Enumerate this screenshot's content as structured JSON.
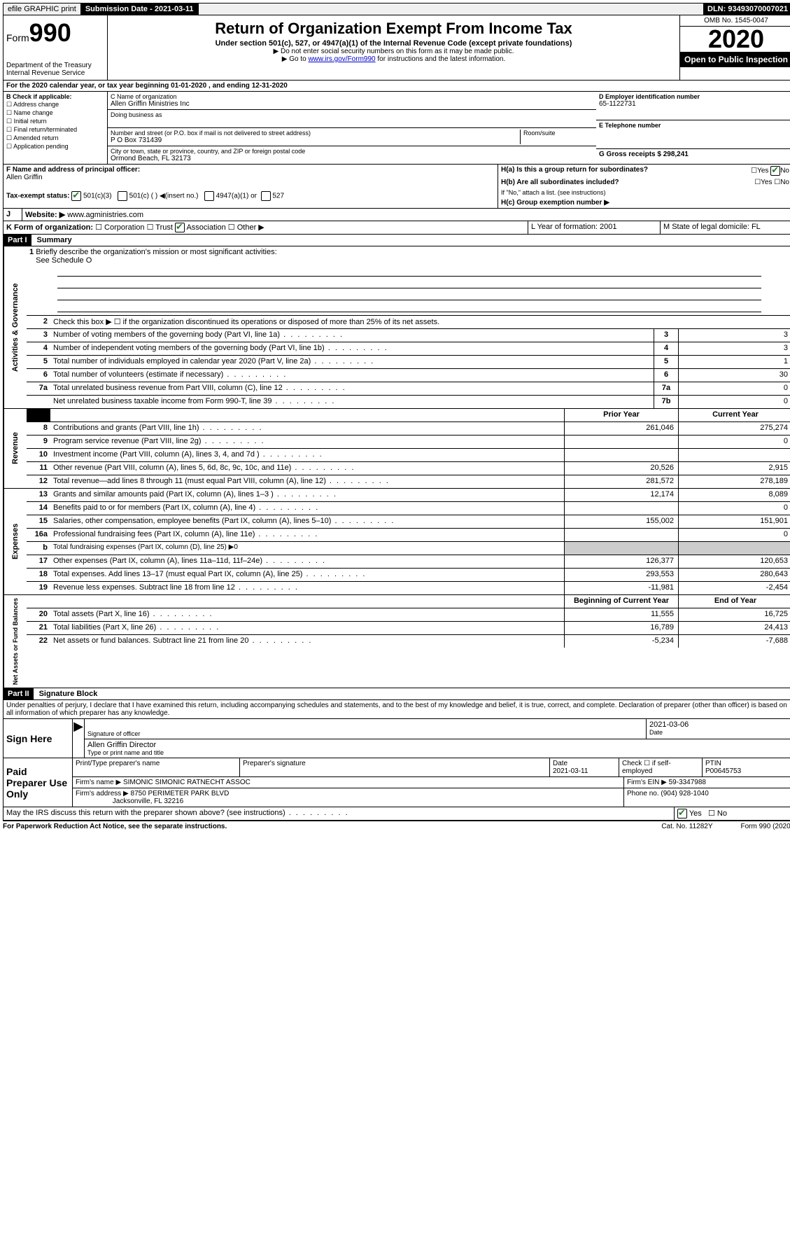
{
  "topbar": {
    "efile": "efile GRAPHIC print",
    "submission_label": "Submission Date - 2021-03-11",
    "dln_label": "DLN: 93493070007021"
  },
  "header": {
    "form_label": "Form",
    "form_number": "990",
    "dept": "Department of the Treasury",
    "irs": "Internal Revenue Service",
    "title": "Return of Organization Exempt From Income Tax",
    "subtitle": "Under section 501(c), 527, or 4947(a)(1) of the Internal Revenue Code (except private foundations)",
    "note1": "▶ Do not enter social security numbers on this form as it may be made public.",
    "note2_pre": "▶ Go to ",
    "note2_link": "www.irs.gov/Form990",
    "note2_post": " for instructions and the latest information.",
    "omb": "OMB No. 1545-0047",
    "year": "2020",
    "open_public": "Open to Public Inspection"
  },
  "lineA": "For the 2020 calendar year, or tax year beginning 01-01-2020    , and ending 12-31-2020",
  "sectionB": {
    "header": "B Check if applicable:",
    "opts": [
      "Address change",
      "Name change",
      "Initial return",
      "Final return/terminated",
      "Amended return",
      "Application pending"
    ]
  },
  "sectionC": {
    "org_label": "C Name of organization",
    "org_name": "Allen Griffin Ministries Inc",
    "dba_label": "Doing business as",
    "addr_label": "Number and street (or P.O. box if mail is not delivered to street address)",
    "addr": "P O Box 731439",
    "room_label": "Room/suite",
    "city_label": "City or town, state or province, country, and ZIP or foreign postal code",
    "city": "Ormond Beach, FL  32173"
  },
  "sectionD": {
    "label": "D Employer identification number",
    "value": "65-1122731"
  },
  "sectionE": {
    "label": "E Telephone number",
    "value": ""
  },
  "sectionG": {
    "label": "G Gross receipts $ 298,241"
  },
  "sectionF": {
    "label": "F  Name and address of principal officer:",
    "name": "Allen Griffin"
  },
  "sectionH": {
    "ha": "H(a)  Is this a group return for subordinates?",
    "ha_yes": "Yes",
    "ha_no": "No",
    "hb": "H(b)  Are all subordinates included?",
    "hb_note": "If \"No,\" attach a list. (see instructions)",
    "hc": "H(c)  Group exemption number ▶"
  },
  "sectionI": {
    "label": "Tax-exempt status:",
    "opt1": "501(c)(3)",
    "opt2": "501(c) (   ) ◀(insert no.)",
    "opt3": "4947(a)(1) or",
    "opt4": "527"
  },
  "sectionJ": {
    "label": "Website: ▶",
    "value": "www.agministries.com"
  },
  "sectionK": {
    "label": "K Form of organization:",
    "opts": [
      "Corporation",
      "Trust",
      "Association",
      "Other ▶"
    ]
  },
  "sectionL": {
    "label": "L Year of formation: 2001"
  },
  "sectionM": {
    "label": "M State of legal domicile: FL"
  },
  "part1": {
    "header": "Part I",
    "title": "Summary",
    "q1": "Briefly describe the organization's mission or most significant activities:",
    "q1_ans": "See Schedule O",
    "q2": "Check this box ▶ ☐  if the organization discontinued its operations or disposed of more than 25% of its net assets.",
    "rows_gov": [
      {
        "n": "3",
        "d": "Number of voting members of the governing body (Part VI, line 1a)",
        "b": "3",
        "v": "3"
      },
      {
        "n": "4",
        "d": "Number of independent voting members of the governing body (Part VI, line 1b)",
        "b": "4",
        "v": "3"
      },
      {
        "n": "5",
        "d": "Total number of individuals employed in calendar year 2020 (Part V, line 2a)",
        "b": "5",
        "v": "1"
      },
      {
        "n": "6",
        "d": "Total number of volunteers (estimate if necessary)",
        "b": "6",
        "v": "30"
      },
      {
        "n": "7a",
        "d": "Total unrelated business revenue from Part VIII, column (C), line 12",
        "b": "7a",
        "v": "0"
      },
      {
        "n": "",
        "d": "Net unrelated business taxable income from Form 990-T, line 39",
        "b": "7b",
        "v": "0"
      }
    ],
    "col_prior": "Prior Year",
    "col_current": "Current Year",
    "rows_rev": [
      {
        "n": "8",
        "d": "Contributions and grants (Part VIII, line 1h)",
        "p": "261,046",
        "c": "275,274"
      },
      {
        "n": "9",
        "d": "Program service revenue (Part VIII, line 2g)",
        "p": "",
        "c": "0"
      },
      {
        "n": "10",
        "d": "Investment income (Part VIII, column (A), lines 3, 4, and 7d )",
        "p": "",
        "c": ""
      },
      {
        "n": "11",
        "d": "Other revenue (Part VIII, column (A), lines 5, 6d, 8c, 9c, 10c, and 11e)",
        "p": "20,526",
        "c": "2,915"
      },
      {
        "n": "12",
        "d": "Total revenue—add lines 8 through 11 (must equal Part VIII, column (A), line 12)",
        "p": "281,572",
        "c": "278,189"
      }
    ],
    "rows_exp": [
      {
        "n": "13",
        "d": "Grants and similar amounts paid (Part IX, column (A), lines 1–3 )",
        "p": "12,174",
        "c": "8,089"
      },
      {
        "n": "14",
        "d": "Benefits paid to or for members (Part IX, column (A), line 4)",
        "p": "",
        "c": "0"
      },
      {
        "n": "15",
        "d": "Salaries, other compensation, employee benefits (Part IX, column (A), lines 5–10)",
        "p": "155,002",
        "c": "151,901"
      },
      {
        "n": "16a",
        "d": "Professional fundraising fees (Part IX, column (A), line 11e)",
        "p": "",
        "c": "0"
      },
      {
        "n": "b",
        "d": "Total fundraising expenses (Part IX, column (D), line 25) ▶0",
        "p": "—",
        "c": "—"
      },
      {
        "n": "17",
        "d": "Other expenses (Part IX, column (A), lines 11a–11d, 11f–24e)",
        "p": "126,377",
        "c": "120,653"
      },
      {
        "n": "18",
        "d": "Total expenses. Add lines 13–17 (must equal Part IX, column (A), line 25)",
        "p": "293,553",
        "c": "280,643"
      },
      {
        "n": "19",
        "d": "Revenue less expenses. Subtract line 18 from line 12",
        "p": "-11,981",
        "c": "-2,454"
      }
    ],
    "col_begin": "Beginning of Current Year",
    "col_end": "End of Year",
    "rows_net": [
      {
        "n": "20",
        "d": "Total assets (Part X, line 16)",
        "p": "11,555",
        "c": "16,725"
      },
      {
        "n": "21",
        "d": "Total liabilities (Part X, line 26)",
        "p": "16,789",
        "c": "24,413"
      },
      {
        "n": "22",
        "d": "Net assets or fund balances. Subtract line 21 from line 20",
        "p": "-5,234",
        "c": "-7,688"
      }
    ],
    "vert_gov": "Activities & Governance",
    "vert_rev": "Revenue",
    "vert_exp": "Expenses",
    "vert_net": "Net Assets or Fund Balances"
  },
  "part2": {
    "header": "Part II",
    "title": "Signature Block",
    "perjury": "Under penalties of perjury, I declare that I have examined this return, including accompanying schedules and statements, and to the best of my knowledge and belief, it is true, correct, and complete. Declaration of preparer (other than officer) is based on all information of which preparer has any knowledge.",
    "sign_here": "Sign Here",
    "sig_officer": "Signature of officer",
    "sig_date": "2021-03-06",
    "date_lbl": "Date",
    "officer_name": "Allen Griffin  Director",
    "type_name": "Type or print name and title",
    "paid_label": "Paid Preparer Use Only",
    "prep_name_lbl": "Print/Type preparer's name",
    "prep_sig_lbl": "Preparer's signature",
    "prep_date_lbl": "Date",
    "prep_date": "2021-03-11",
    "self_emp": "Check ☐ if self-employed",
    "ptin_lbl": "PTIN",
    "ptin": "P00645753",
    "firm_name_lbl": "Firm's name    ▶",
    "firm_name": "SIMONIC SIMONIC RATNECHT ASSOC",
    "firm_ein_lbl": "Firm's EIN ▶",
    "firm_ein": "59-3347988",
    "firm_addr_lbl": "Firm's address ▶",
    "firm_addr1": "8750 PERIMETER PARK BLVD",
    "firm_addr2": "Jacksonville, FL  32216",
    "phone_lbl": "Phone no.",
    "phone": "(904) 928-1040",
    "discuss": "May the IRS discuss this return with the preparer shown above? (see instructions)",
    "discuss_yes": "Yes",
    "discuss_no": "No"
  },
  "footer": {
    "left": "For Paperwork Reduction Act Notice, see the separate instructions.",
    "mid": "Cat. No. 11282Y",
    "right": "Form 990 (2020)"
  }
}
